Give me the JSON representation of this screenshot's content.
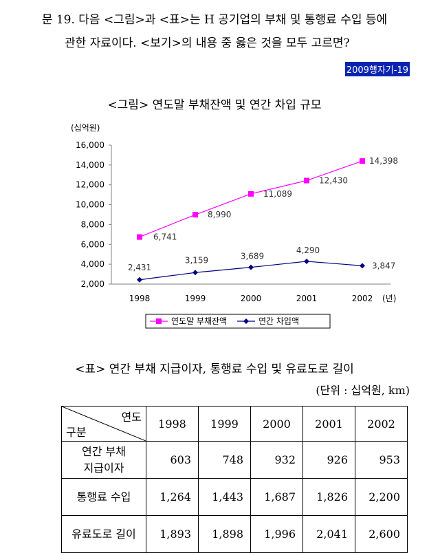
{
  "question": {
    "line1": "문 19. 다음 <그림>과 <표>는 H 공기업의 부채 및 통행료 수입 등에",
    "line2": "관한 자료이다. <보기>의 내용 중 옳은 것을 모두 고르면?",
    "source": "2009행자기-19"
  },
  "figure": {
    "title": "<그림> 연도말 부채잔액 및 연간 차입 규모"
  },
  "chart_data": {
    "type": "line",
    "ylabel": "(십억원)",
    "xlabel": "(년)",
    "ylim": [
      2000,
      16000
    ],
    "yticks": [
      2000,
      4000,
      6000,
      8000,
      10000,
      12000,
      14000,
      16000
    ],
    "ytick_labels": [
      "2,000",
      "4,000",
      "6,000",
      "8,000",
      "10,000",
      "12,000",
      "14,000",
      "16,000"
    ],
    "categories": [
      "1998",
      "1999",
      "2000",
      "2001",
      "2002"
    ],
    "series": [
      {
        "name": "연도말 부채잔액",
        "color": "#ff00ff",
        "marker": "square",
        "values": [
          6741,
          8990,
          11089,
          12430,
          14398
        ],
        "labels": [
          "6,741",
          "8,990",
          "11,089",
          "12,430",
          "14,398"
        ]
      },
      {
        "name": "연간 차입액",
        "color": "#000080",
        "marker": "diamond",
        "values": [
          2431,
          3159,
          3689,
          4290,
          3847
        ],
        "labels": [
          "2,431",
          "3,159",
          "3,689",
          "4,290",
          "3,847"
        ]
      }
    ],
    "legend": "bottom"
  },
  "table": {
    "title": "<표> 연간 부채 지급이자, 통행료 수입 및 유료도로 길이",
    "unit": "(단위 : 십억원, km)",
    "header_top": "연도",
    "header_bottom": "구분",
    "years": [
      "1998",
      "1999",
      "2000",
      "2001",
      "2002"
    ],
    "rows": [
      {
        "label1": "연간 부채",
        "label2": "지급이자",
        "values": [
          "603",
          "748",
          "932",
          "926",
          "953"
        ]
      },
      {
        "label1": "통행료 수입",
        "values": [
          "1,264",
          "1,443",
          "1,687",
          "1,826",
          "2,200"
        ]
      },
      {
        "label1": "유료도로 길이",
        "values": [
          "1,893",
          "1,898",
          "1,996",
          "2,041",
          "2,600"
        ]
      }
    ]
  }
}
